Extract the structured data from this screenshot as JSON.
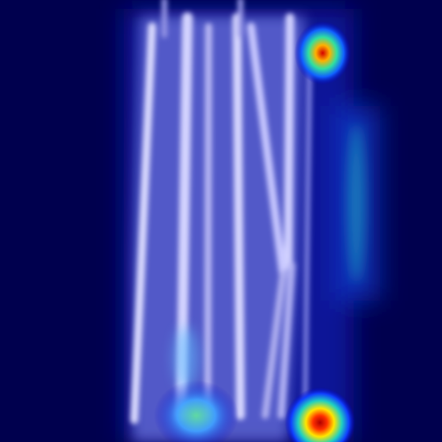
{
  "image": {
    "kind": "attention-heatmap-overlay",
    "colormap": "jet",
    "background_color": "#00004e",
    "overlay_color": "#c8c8ff",
    "hotspot_colors": {
      "low": "#0000c8",
      "mid": "#00c8c8",
      "high": "#ffe600",
      "peak": "#d40000"
    }
  }
}
